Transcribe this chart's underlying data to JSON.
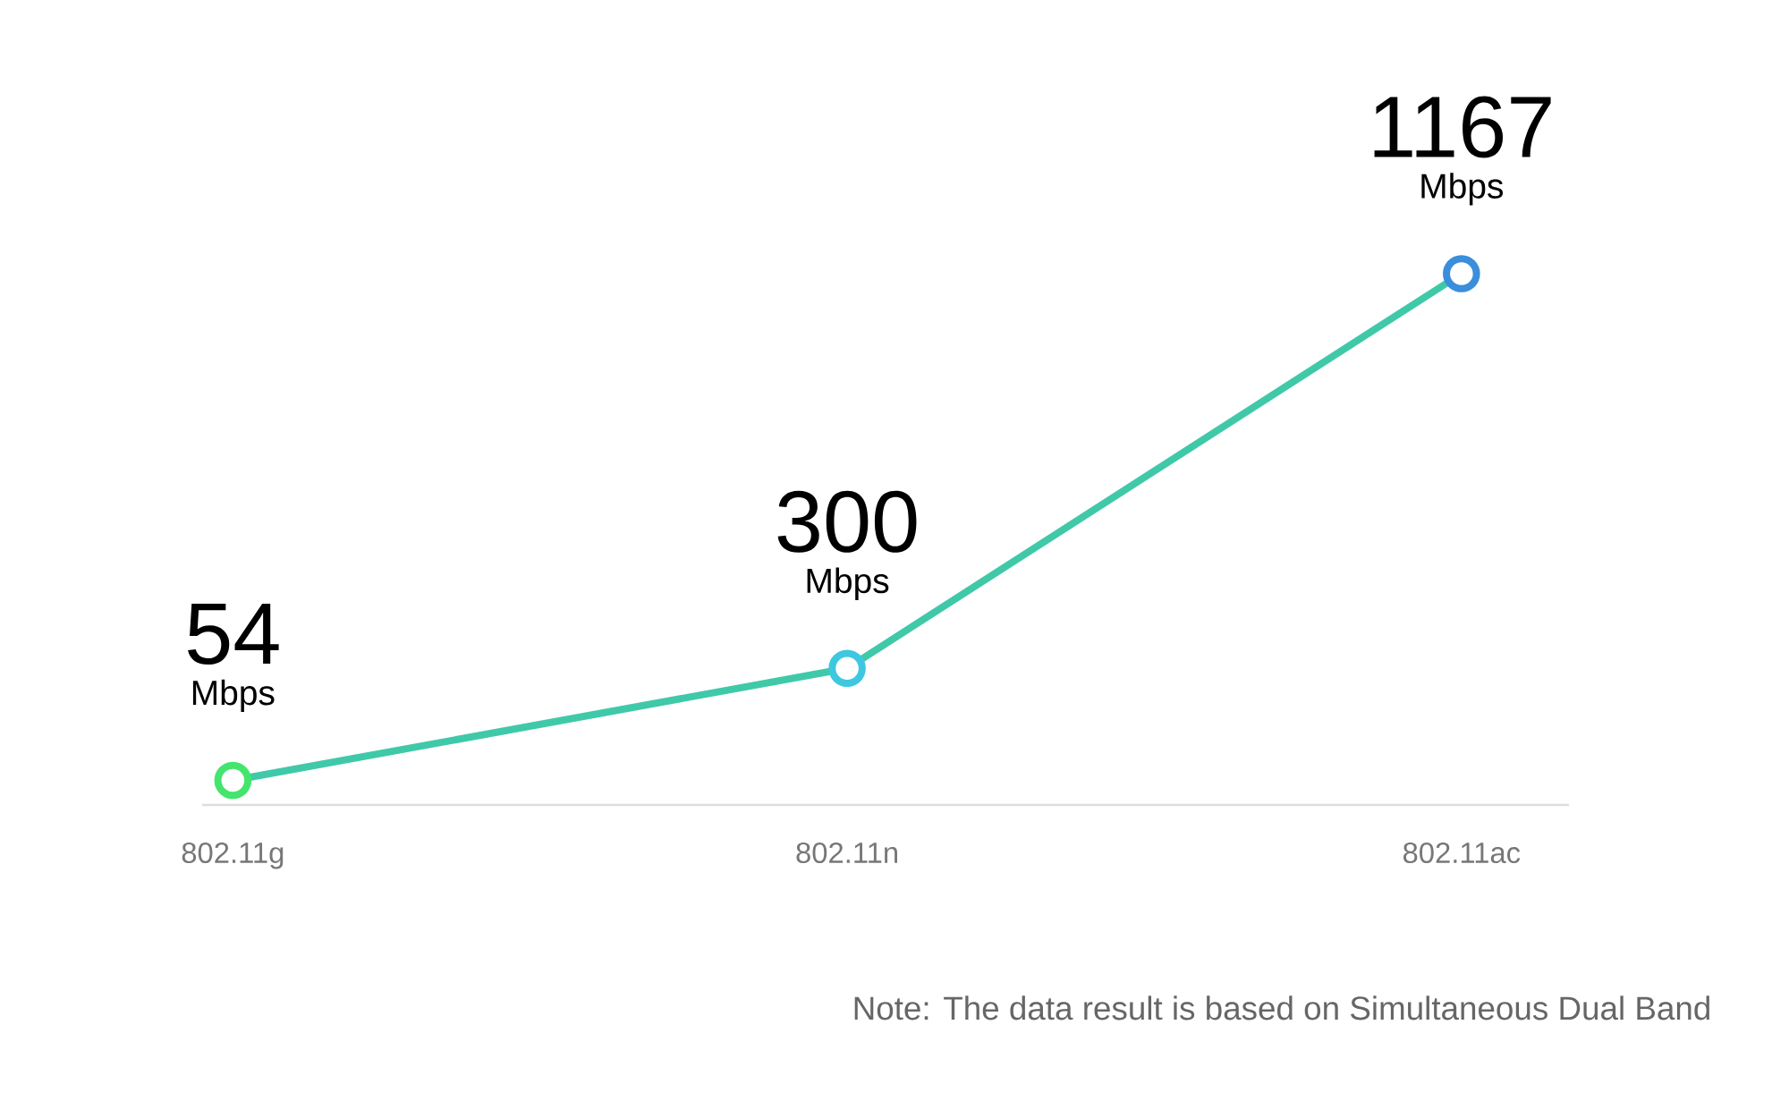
{
  "chart_data": {
    "type": "line",
    "categories": [
      "802.11g",
      "802.11n",
      "802.11ac"
    ],
    "values": [
      54,
      300,
      1167
    ],
    "value_labels": [
      "54 Mbps",
      "300 Mbps",
      "1167 Mbps"
    ],
    "color": "#40c9a8",
    "colors": [
      "#44e56c",
      "#3dc8e0",
      "#3a8edb"
    ],
    "marker": "circle",
    "line_style": "solid",
    "annotations": [
      "Note: The data result is based on Simultaneous Dual Band"
    ]
  }
}
